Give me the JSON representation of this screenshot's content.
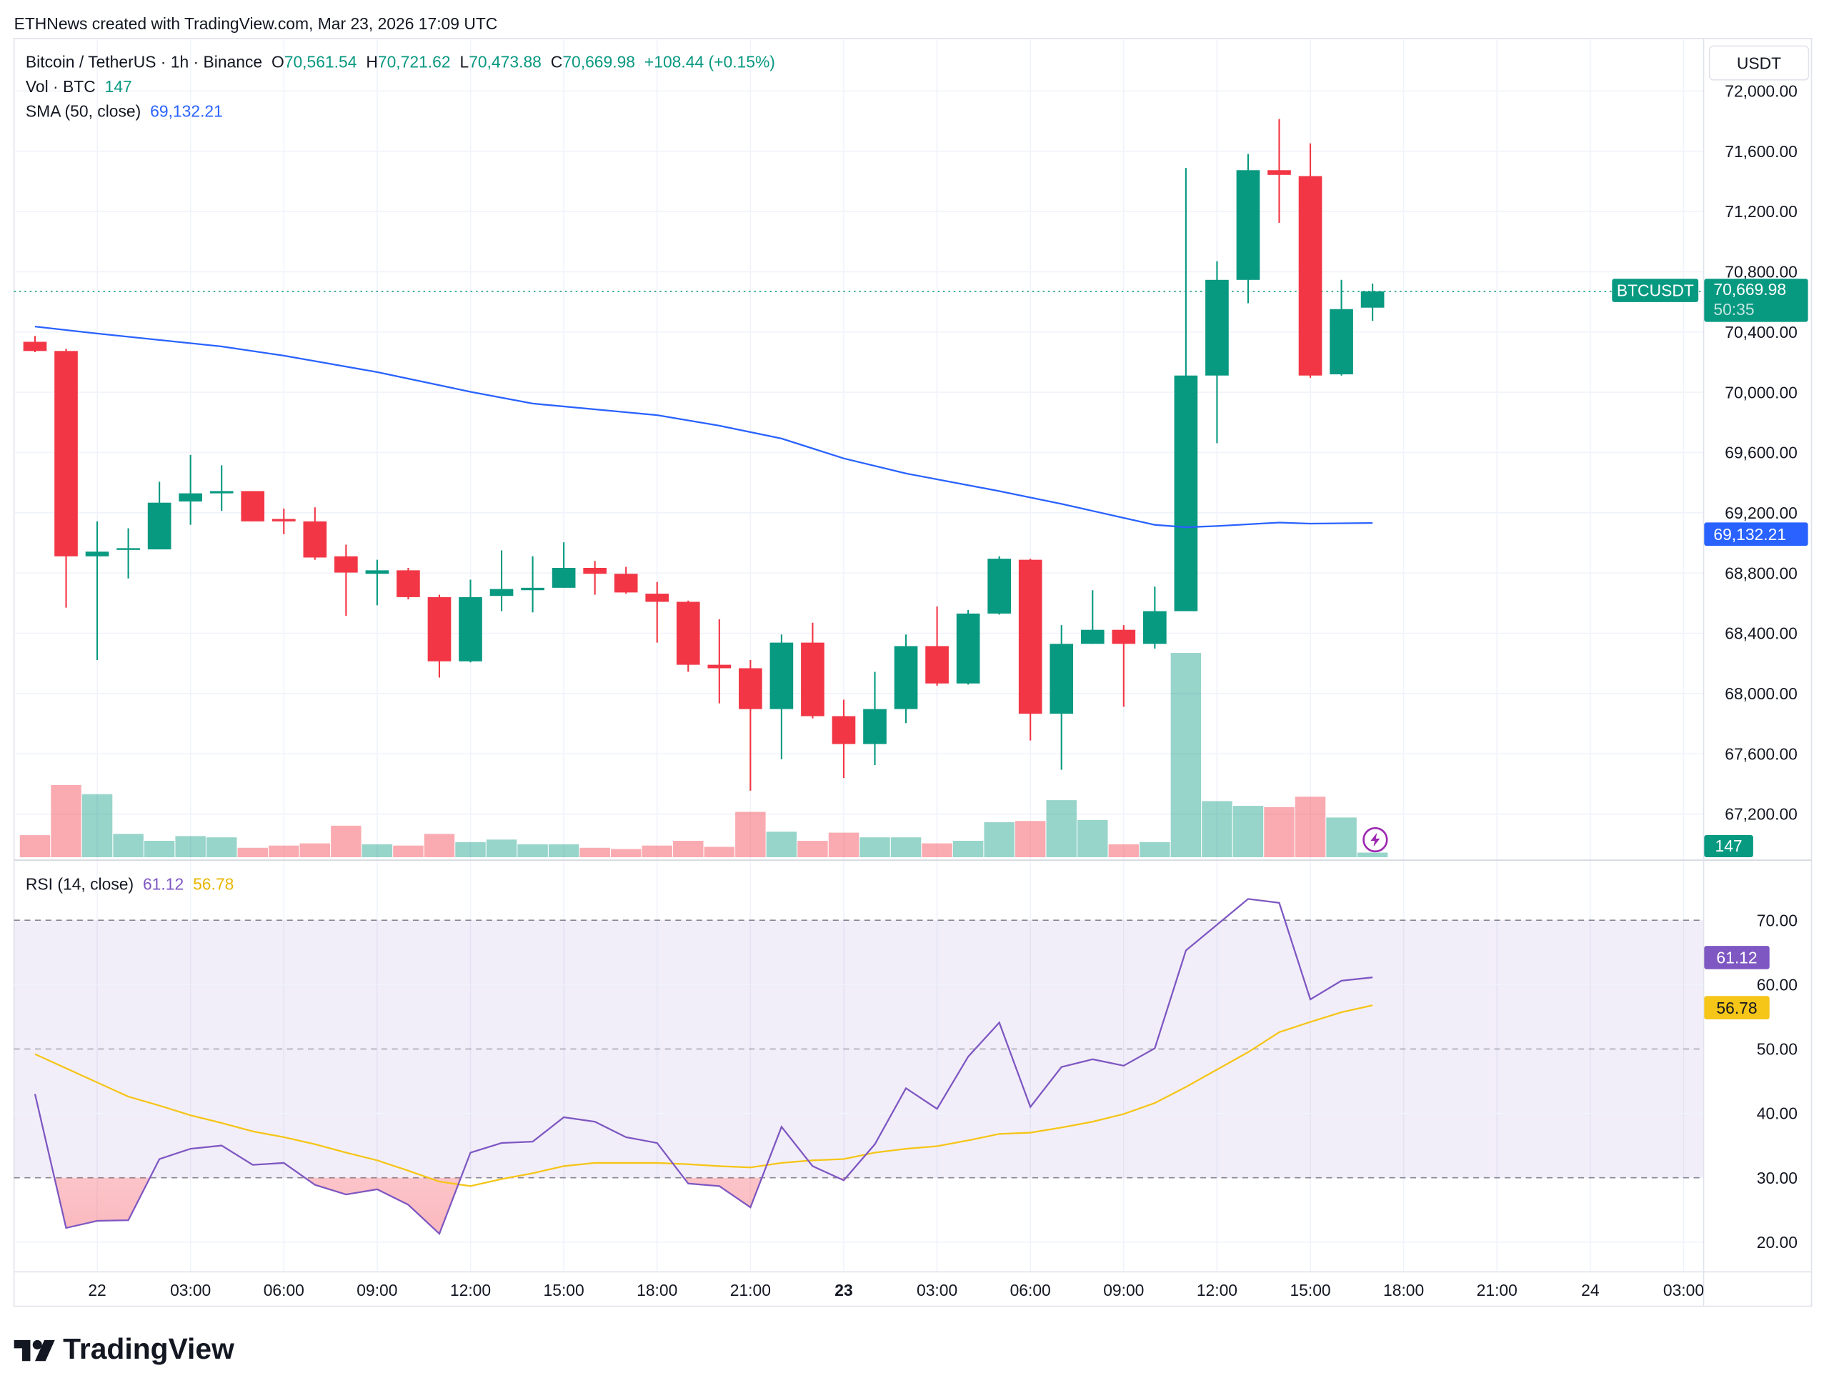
{
  "credit": "ETHNews created with TradingView.com, Mar 23, 2026 17:09 UTC",
  "legend": {
    "symbol": "Bitcoin / TetherUS · 1h · Binance",
    "o_label": "O",
    "o": "70,561.54",
    "h_label": "H",
    "h": "70,721.62",
    "l_label": "L",
    "l": "70,473.88",
    "c_label": "C",
    "c": "70,669.98",
    "change": "+108.44 (+0.15%)",
    "vol_label": "Vol · BTC",
    "vol": "147",
    "sma_label": "SMA (50, close)",
    "sma": "69,132.21",
    "rsi_label": "RSI (14, close)",
    "rsi": "61.12",
    "rsi_ma": "56.78"
  },
  "currency": "USDT",
  "tags": {
    "symbol": "BTCUSDT",
    "price": "70,669.98",
    "countdown": "50:35",
    "sma": "69,132.21",
    "volume": "147",
    "rsi": "61.12",
    "rsi_ma": "56.78"
  },
  "logo": "TradingView",
  "colors": {
    "up": "#089981",
    "down": "#f23645",
    "sma": "#2962ff",
    "rsi": "#7e57c2",
    "rsi_ma": "#f5c518",
    "band": "#7e57c2"
  },
  "chart_data": {
    "type": "candlestick",
    "price_axis": {
      "ylim": [
        67200,
        72000
      ],
      "ticks": [
        72000,
        71600,
        71200,
        70800,
        70400,
        70000,
        69600,
        69200,
        68800,
        68400,
        68000,
        67600,
        67200
      ],
      "tick_labels": [
        "72,000.00",
        "71,600.00",
        "71,200.00",
        "70,800.00",
        "70,400.00",
        "70,000.00",
        "69,600.00",
        "69,200.00",
        "68,800.00",
        "68,400.00",
        "68,000.00",
        "67,600.00",
        "67,200.00"
      ]
    },
    "time_axis": [
      {
        "label": "22",
        "time": "03-22 00:00",
        "bold": false
      },
      {
        "label": "03:00",
        "time": "03-22 03:00",
        "bold": false
      },
      {
        "label": "06:00",
        "time": "03-22 06:00",
        "bold": false
      },
      {
        "label": "09:00",
        "time": "03-22 09:00",
        "bold": false
      },
      {
        "label": "12:00",
        "time": "03-22 12:00",
        "bold": false
      },
      {
        "label": "15:00",
        "time": "03-22 15:00",
        "bold": false
      },
      {
        "label": "18:00",
        "time": "03-22 18:00",
        "bold": false
      },
      {
        "label": "21:00",
        "time": "03-22 21:00",
        "bold": false
      },
      {
        "label": "23",
        "time": "03-23 00:00",
        "bold": true
      },
      {
        "label": "03:00",
        "time": "03-23 03:00",
        "bold": false
      },
      {
        "label": "06:00",
        "time": "03-23 06:00",
        "bold": false
      },
      {
        "label": "09:00",
        "time": "03-23 09:00",
        "bold": false
      },
      {
        "label": "12:00",
        "time": "03-23 12:00",
        "bold": false
      },
      {
        "label": "15:00",
        "time": "03-23 15:00",
        "bold": false
      },
      {
        "label": "18:00",
        "time": "03-23 18:00",
        "bold": false
      },
      {
        "label": "21:00",
        "time": "03-23 21:00",
        "bold": false
      },
      {
        "label": "24",
        "time": "03-24 00:00",
        "bold": false
      },
      {
        "label": "03:00",
        "time": "03-24 03:00",
        "bold": false
      }
    ],
    "columns": [
      "time",
      "open",
      "high",
      "low",
      "close",
      "volume"
    ],
    "candles": [
      [
        "03-21 22:00",
        70335,
        70374,
        70266,
        70274,
        700
      ],
      [
        "03-21 23:00",
        70274,
        70289,
        68570,
        68911,
        2290
      ],
      [
        "03-22 00:00",
        68911,
        69143,
        68222,
        68942,
        2000
      ],
      [
        "03-22 01:00",
        68957,
        69097,
        68764,
        68965,
        740
      ],
      [
        "03-22 02:00",
        68957,
        69406,
        68957,
        69267,
        520
      ],
      [
        "03-22 03:00",
        69275,
        69584,
        69120,
        69329,
        670
      ],
      [
        "03-22 04:00",
        69329,
        69515,
        69213,
        69344,
        630
      ],
      [
        "03-22 05:00",
        69344,
        69344,
        69143,
        69143,
        300
      ],
      [
        "03-22 06:00",
        69159,
        69228,
        69058,
        69143,
        370
      ],
      [
        "03-22 07:00",
        69143,
        69236,
        68888,
        68903,
        440
      ],
      [
        "03-22 08:00",
        68911,
        68988,
        68516,
        68803,
        1000
      ],
      [
        "03-22 09:00",
        68795,
        68888,
        68586,
        68818,
        410
      ],
      [
        "03-22 10:00",
        68818,
        68834,
        68625,
        68640,
        370
      ],
      [
        "03-22 11:00",
        68640,
        68656,
        68106,
        68214,
        740
      ],
      [
        "03-22 12:00",
        68214,
        68756,
        68207,
        68640,
        480
      ],
      [
        "03-22 13:00",
        68648,
        68950,
        68547,
        68694,
        560
      ],
      [
        "03-22 14:00",
        68686,
        68911,
        68539,
        68702,
        410
      ],
      [
        "03-22 15:00",
        68702,
        69004,
        68702,
        68834,
        410
      ],
      [
        "03-22 16:00",
        68834,
        68880,
        68656,
        68795,
        300
      ],
      [
        "03-22 17:00",
        68795,
        68841,
        68663,
        68671,
        260
      ],
      [
        "03-22 18:00",
        68663,
        68741,
        68338,
        68609,
        370
      ],
      [
        "03-22 19:00",
        68609,
        68617,
        68144,
        68191,
        520
      ],
      [
        "03-22 20:00",
        68191,
        68493,
        67935,
        68168,
        330
      ],
      [
        "03-22 21:00",
        68168,
        68222,
        67355,
        67897,
        1440
      ],
      [
        "03-22 22:00",
        67897,
        68392,
        67564,
        68338,
        810
      ],
      [
        "03-22 23:00",
        68338,
        68470,
        67835,
        67850,
        520
      ],
      [
        "03-23 00:00",
        67850,
        67959,
        67440,
        67665,
        780
      ],
      [
        "03-23 01:00",
        67665,
        68144,
        67525,
        67897,
        630
      ],
      [
        "03-23 02:00",
        67897,
        68392,
        67804,
        68315,
        630
      ],
      [
        "03-23 03:00",
        68315,
        68578,
        68052,
        68067,
        440
      ],
      [
        "03-23 04:00",
        68067,
        68555,
        68059,
        68531,
        520
      ],
      [
        "03-23 05:00",
        68531,
        68911,
        68524,
        68895,
        1110
      ],
      [
        "03-23 06:00",
        68888,
        68895,
        67688,
        67866,
        1150
      ],
      [
        "03-23 07:00",
        67866,
        68454,
        67494,
        68330,
        1810
      ],
      [
        "03-23 08:00",
        68330,
        68686,
        68330,
        68423,
        1180
      ],
      [
        "03-23 09:00",
        68423,
        68454,
        67912,
        68330,
        410
      ],
      [
        "03-23 10:00",
        68330,
        68710,
        68299,
        68547,
        480
      ],
      [
        "03-23 11:00",
        68547,
        71489,
        68547,
        70111,
        6480
      ],
      [
        "03-23 12:00",
        70111,
        70870,
        69662,
        70746,
        1780
      ],
      [
        "03-23 13:00",
        70746,
        71582,
        70591,
        71474,
        1630
      ],
      [
        "03-23 14:00",
        71474,
        71814,
        71125,
        71443,
        1590
      ],
      [
        "03-23 15:00",
        71435,
        71652,
        70096,
        70111,
        1920
      ],
      [
        "03-23 16:00",
        70119,
        70746,
        70111,
        70552,
        1260
      ],
      [
        "03-23 17:00",
        70561.54,
        70721.62,
        70473.88,
        70669.98,
        147
      ]
    ],
    "sma_50": [
      [
        "03-21 22:00",
        70436
      ],
      [
        "03-22 00:00",
        70390
      ],
      [
        "03-22 04:00",
        70304
      ],
      [
        "03-22 06:00",
        70243
      ],
      [
        "03-22 09:00",
        70134
      ],
      [
        "03-22 12:00",
        70003
      ],
      [
        "03-22 14:00",
        69925
      ],
      [
        "03-22 18:00",
        69848
      ],
      [
        "03-22 20:00",
        69778
      ],
      [
        "03-22 22:00",
        69693
      ],
      [
        "03-23 00:00",
        69561
      ],
      [
        "03-23 02:00",
        69461
      ],
      [
        "03-23 04:00",
        69383
      ],
      [
        "03-23 05:00",
        69344
      ],
      [
        "03-23 07:00",
        69259
      ],
      [
        "03-23 09:00",
        69166
      ],
      [
        "03-23 10:00",
        69120
      ],
      [
        "03-23 11:00",
        69104
      ],
      [
        "03-23 12:00",
        69112
      ],
      [
        "03-23 14:00",
        69135
      ],
      [
        "03-23 15:00",
        69128
      ],
      [
        "03-23 17:00",
        69132.21
      ]
    ],
    "rsi": {
      "ylim": [
        17,
        74
      ],
      "ticks": [
        70,
        60,
        50,
        40,
        30,
        20
      ],
      "tick_labels": [
        "70.00",
        "60.00",
        "50.00",
        "40.00",
        "30.00",
        "20.00"
      ],
      "band": [
        30,
        70
      ],
      "midline": 50,
      "values": [
        43.0,
        22.2,
        23.3,
        23.4,
        32.9,
        34.5,
        35.0,
        32.0,
        32.3,
        28.9,
        27.4,
        28.2,
        25.8,
        21.3,
        33.9,
        35.4,
        35.6,
        39.4,
        38.7,
        36.3,
        35.4,
        29.1,
        28.7,
        25.4,
        37.9,
        31.8,
        29.6,
        35.2,
        43.9,
        40.7,
        48.8,
        54.1,
        41.0,
        47.2,
        48.4,
        47.4,
        50.1,
        65.3,
        69.3,
        73.3,
        72.7,
        57.7,
        60.6,
        61.12
      ],
      "ma_values": [
        49.2,
        47.0,
        44.8,
        42.6,
        41.2,
        39.7,
        38.5,
        37.2,
        36.3,
        35.2,
        33.9,
        32.7,
        31.1,
        29.4,
        28.7,
        29.8,
        30.7,
        31.8,
        32.3,
        32.3,
        32.3,
        32.1,
        31.8,
        31.6,
        32.3,
        32.7,
        32.9,
        33.9,
        34.5,
        34.9,
        35.8,
        36.8,
        37.0,
        37.8,
        38.7,
        39.9,
        41.6,
        44.1,
        46.8,
        49.5,
        52.6,
        54.2,
        55.7,
        56.78
      ]
    }
  }
}
